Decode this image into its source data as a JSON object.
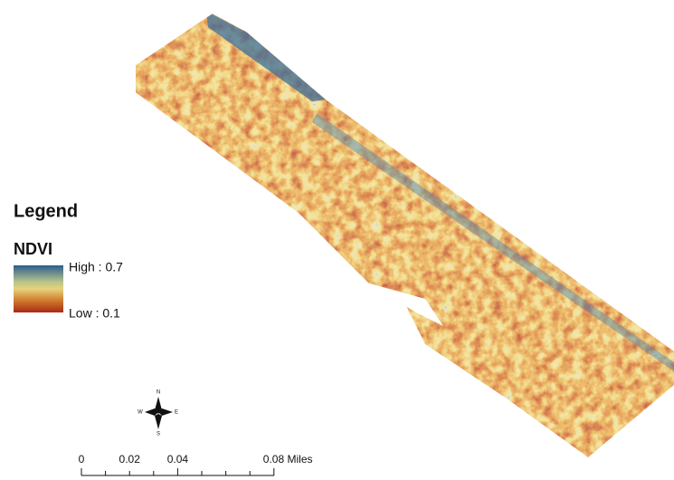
{
  "legend": {
    "title": "Legend",
    "layer": "NDVI",
    "high_label": "High : 0.7",
    "low_label": "Low : 0.1"
  },
  "compass": {
    "north": "N",
    "south": "S",
    "east": "E",
    "west": "W"
  },
  "scale_bar": {
    "labels": [
      "0",
      "0.02",
      "0.04",
      "0.08 Miles"
    ]
  }
}
